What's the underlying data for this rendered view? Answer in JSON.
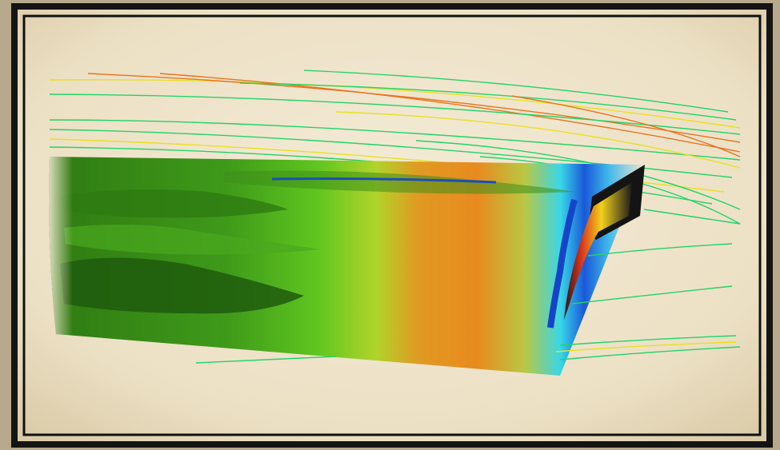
{
  "colors": {
    "paper": "#f0e6cf",
    "paper_edge": "#d9c9a6",
    "frame_outer": "#141414",
    "frame_inner": "#0d0d0d",
    "hull_dark": "#1f5a0d",
    "hull_mid": "#3f9a1a",
    "hull_light": "#6fd12a",
    "hull_yellow": "#b5d92a",
    "hull_orange": "#e88a1e",
    "hull_cyan": "#38d6e8",
    "hull_blue": "#1544c8",
    "transom_red": "#d8321a",
    "transom_yellow": "#f2d11c",
    "stream_green": "#22d36a",
    "stream_yellow": "#e8e021",
    "stream_orange": "#e8741e"
  },
  "scene": {
    "subject": "ship-hull-cfd-contour",
    "has_streamlines": true
  }
}
